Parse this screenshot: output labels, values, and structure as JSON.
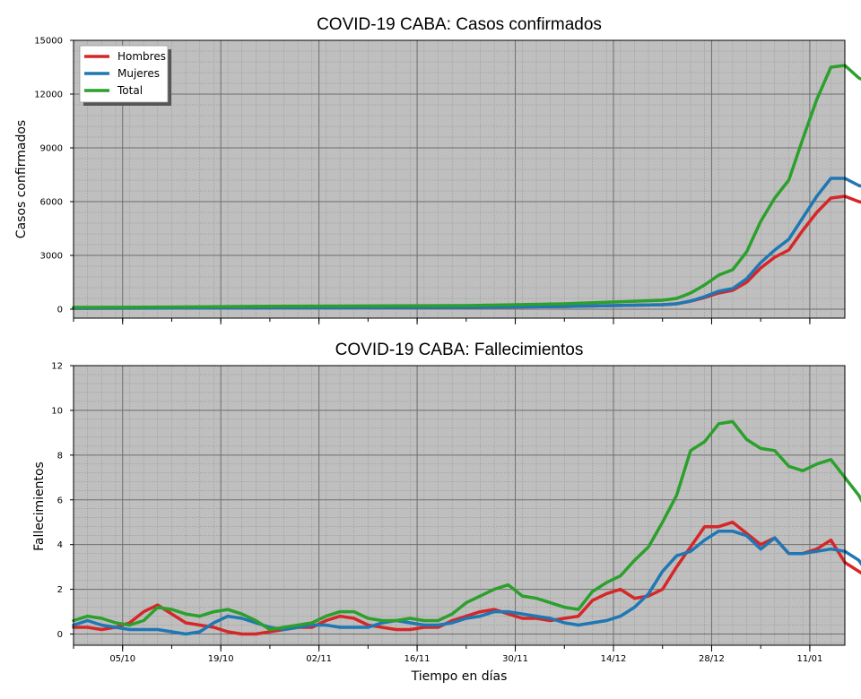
{
  "chart_data": [
    {
      "type": "line",
      "title": "COVID-19 CABA: Casos confirmados",
      "ylabel": "Casos confirmados",
      "xlabel": "",
      "ylim": [
        -500,
        15000
      ],
      "yticks": [
        0,
        3000,
        6000,
        9000,
        12000,
        15000
      ],
      "x_start": "2020-09-28",
      "x_end": "2021-01-16",
      "xticks": [
        "05/10",
        "19/10",
        "02/11",
        "16/11",
        "30/11",
        "14/12",
        "28/12",
        "11/01"
      ],
      "grid": true,
      "legend": "top-left",
      "x_points": [
        0,
        14,
        28,
        42,
        56,
        70,
        77,
        84,
        86,
        88,
        90,
        92,
        94,
        96,
        98,
        100,
        102,
        104,
        106,
        108,
        110,
        112,
        114
      ],
      "series": [
        {
          "name": "Hombres",
          "color": "#d62728",
          "values": [
            50,
            60,
            80,
            90,
            100,
            150,
            200,
            250,
            300,
            450,
            650,
            900,
            1050,
            1500,
            2300,
            2900,
            3300,
            4400,
            5400,
            6200,
            6300,
            6000,
            5800
          ]
        },
        {
          "name": "Mujeres",
          "color": "#1f77b4",
          "values": [
            50,
            60,
            80,
            90,
            100,
            150,
            200,
            250,
            300,
            450,
            700,
            1000,
            1150,
            1700,
            2600,
            3300,
            3900,
            5100,
            6300,
            7300,
            7300,
            6900,
            6700
          ]
        },
        {
          "name": "Total",
          "color": "#2ca02c",
          "values": [
            100,
            120,
            160,
            180,
            200,
            300,
            400,
            500,
            600,
            900,
            1350,
            1900,
            2200,
            3200,
            4900,
            6200,
            7200,
            9500,
            11700,
            13500,
            13600,
            12900,
            12500
          ]
        }
      ]
    },
    {
      "type": "line",
      "title": "COVID-19 CABA: Fallecimientos",
      "ylabel": "Fallecimientos",
      "xlabel": "Tiempo en días",
      "ylim": [
        -0.5,
        12
      ],
      "yticks": [
        0,
        2,
        4,
        6,
        8,
        10,
        12
      ],
      "x_start": "2020-09-28",
      "x_end": "2021-01-16",
      "xticks": [
        "05/10",
        "19/10",
        "02/11",
        "16/11",
        "30/11",
        "14/12",
        "28/12",
        "11/01"
      ],
      "grid": true,
      "x_points": [
        0,
        2,
        4,
        6,
        8,
        10,
        12,
        14,
        16,
        18,
        20,
        22,
        24,
        26,
        28,
        30,
        32,
        34,
        36,
        38,
        40,
        42,
        44,
        46,
        48,
        50,
        52,
        54,
        56,
        58,
        60,
        62,
        64,
        66,
        68,
        70,
        72,
        74,
        76,
        78,
        80,
        82,
        84,
        86,
        88,
        90,
        92,
        94,
        96,
        98,
        100,
        102,
        104,
        106,
        108,
        110,
        112,
        114
      ],
      "series": [
        {
          "name": "Hombres",
          "color": "#d62728",
          "values": [
            0.3,
            0.3,
            0.2,
            0.3,
            0.5,
            1.0,
            1.3,
            0.9,
            0.5,
            0.4,
            0.3,
            0.1,
            0.0,
            0.0,
            0.1,
            0.2,
            0.3,
            0.3,
            0.6,
            0.8,
            0.7,
            0.4,
            0.3,
            0.2,
            0.2,
            0.3,
            0.3,
            0.6,
            0.8,
            1.0,
            1.1,
            0.9,
            0.7,
            0.7,
            0.6,
            0.7,
            0.8,
            1.5,
            1.8,
            2.0,
            1.6,
            1.7,
            2.0,
            3.0,
            3.9,
            4.8,
            4.8,
            5.0,
            4.5,
            4.0,
            4.3,
            3.6,
            3.6,
            3.8,
            4.2,
            3.2,
            2.8,
            2.4
          ]
        },
        {
          "name": "Mujeres",
          "color": "#1f77b4",
          "values": [
            0.4,
            0.6,
            0.4,
            0.3,
            0.2,
            0.2,
            0.2,
            0.1,
            0.0,
            0.1,
            0.5,
            0.8,
            0.7,
            0.5,
            0.3,
            0.2,
            0.3,
            0.4,
            0.4,
            0.3,
            0.3,
            0.3,
            0.5,
            0.6,
            0.5,
            0.4,
            0.4,
            0.5,
            0.7,
            0.8,
            1.0,
            1.0,
            0.9,
            0.8,
            0.7,
            0.5,
            0.4,
            0.5,
            0.6,
            0.8,
            1.2,
            1.8,
            2.8,
            3.5,
            3.7,
            4.2,
            4.6,
            4.6,
            4.4,
            3.8,
            4.3,
            3.6,
            3.6,
            3.7,
            3.8,
            3.7,
            3.3,
            2.4
          ]
        },
        {
          "name": "Total",
          "color": "#2ca02c",
          "values": [
            0.6,
            0.8,
            0.7,
            0.5,
            0.4,
            0.6,
            1.2,
            1.1,
            0.9,
            0.8,
            1.0,
            1.1,
            0.9,
            0.6,
            0.2,
            0.3,
            0.4,
            0.5,
            0.8,
            1.0,
            1.0,
            0.7,
            0.6,
            0.6,
            0.7,
            0.6,
            0.6,
            0.9,
            1.4,
            1.7,
            2.0,
            2.2,
            1.7,
            1.6,
            1.4,
            1.2,
            1.1,
            1.9,
            2.3,
            2.6,
            3.3,
            3.9,
            5.0,
            6.2,
            8.2,
            8.6,
            9.4,
            9.5,
            8.7,
            8.3,
            8.2,
            7.5,
            7.3,
            7.6,
            7.8,
            7.0,
            6.2,
            5.0
          ]
        }
      ]
    }
  ]
}
